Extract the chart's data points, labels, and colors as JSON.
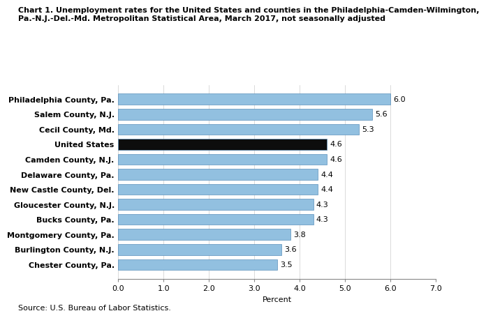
{
  "title_line1": "Chart 1. Unemployment rates for the United States and counties in the Philadelphia-Camden-Wilmington,",
  "title_line2": "Pa.-N.J.-Del.-Md. Metropolitan Statistical Area, March 2017, not seasonally adjusted",
  "categories": [
    "Chester County, Pa.",
    "Burlington County, N.J.",
    "Montgomery County, Pa.",
    "Bucks County, Pa.",
    "Gloucester County, N.J.",
    "New Castle County, Del.",
    "Delaware County, Pa.",
    "Camden County, N.J.",
    "United States",
    "Cecil County, Md.",
    "Salem County, N.J.",
    "Philadelphia County, Pa."
  ],
  "values": [
    3.5,
    3.6,
    3.8,
    4.3,
    4.3,
    4.4,
    4.4,
    4.6,
    4.6,
    5.3,
    5.6,
    6.0
  ],
  "bar_colors": [
    "#92c0e0",
    "#92c0e0",
    "#92c0e0",
    "#92c0e0",
    "#92c0e0",
    "#92c0e0",
    "#92c0e0",
    "#92c0e0",
    "#0d0d0d",
    "#92c0e0",
    "#92c0e0",
    "#92c0e0"
  ],
  "bar_edge_color": "#5a8fba",
  "xlabel": "Percent",
  "xlim": [
    0,
    7.0
  ],
  "xticks": [
    0.0,
    1.0,
    2.0,
    3.0,
    4.0,
    5.0,
    6.0,
    7.0
  ],
  "xtick_labels": [
    "0.0",
    "1.0",
    "2.0",
    "3.0",
    "4.0",
    "5.0",
    "6.0",
    "7.0"
  ],
  "source": "Source: U.S. Bureau of Labor Statistics.",
  "title_fontsize": 8.0,
  "label_fontsize": 8.0,
  "tick_fontsize": 8.0,
  "value_fontsize": 8.0
}
